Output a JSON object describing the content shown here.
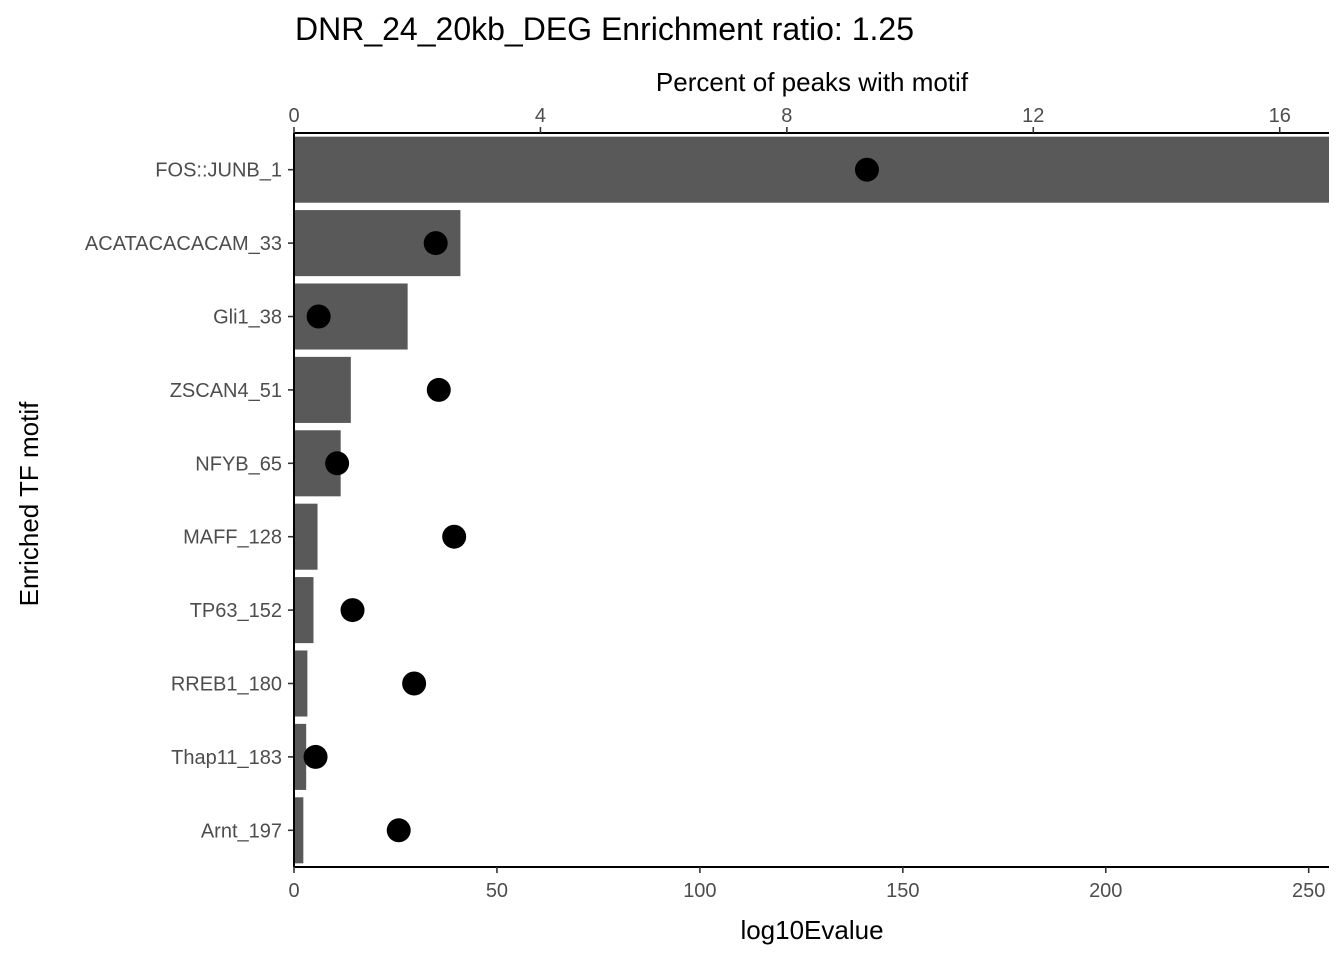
{
  "chart_data": {
    "type": "bar",
    "title": "DNR_24_20kb_DEG Enrichment ratio: 1.25",
    "xlabel": "log10Evalue",
    "ylabel": "Enriched TF motif",
    "secondary_xlabel": "Percent of peaks with motif",
    "categories": [
      "FOS::JUNB_1",
      "ACATACACACAM_33",
      "Gli1_38",
      "ZSCAN4_51",
      "NFYB_65",
      "MAFF_128",
      "TP63_152",
      "RREB1_180",
      "Thap11_183",
      "Arnt_197"
    ],
    "bar_series": {
      "axis": "log10Evalue",
      "values": [
        300,
        41,
        28,
        14,
        11.5,
        5.8,
        4.8,
        3.3,
        3.0,
        2.3
      ],
      "color": "#595959"
    },
    "point_series": {
      "axis": "Percent of peaks with motif",
      "values": [
        9.3,
        2.3,
        0.4,
        2.35,
        0.7,
        2.6,
        0.95,
        1.95,
        0.35,
        1.7
      ],
      "color": "#000000"
    },
    "xlim": [
      0,
      255
    ],
    "xticks": [
      0,
      50,
      100,
      150,
      200,
      250
    ],
    "secondary_xlim": [
      0,
      16.8
    ],
    "secondary_xticks": [
      0,
      4,
      8,
      12,
      16
    ],
    "grid": false,
    "legend": "none"
  }
}
